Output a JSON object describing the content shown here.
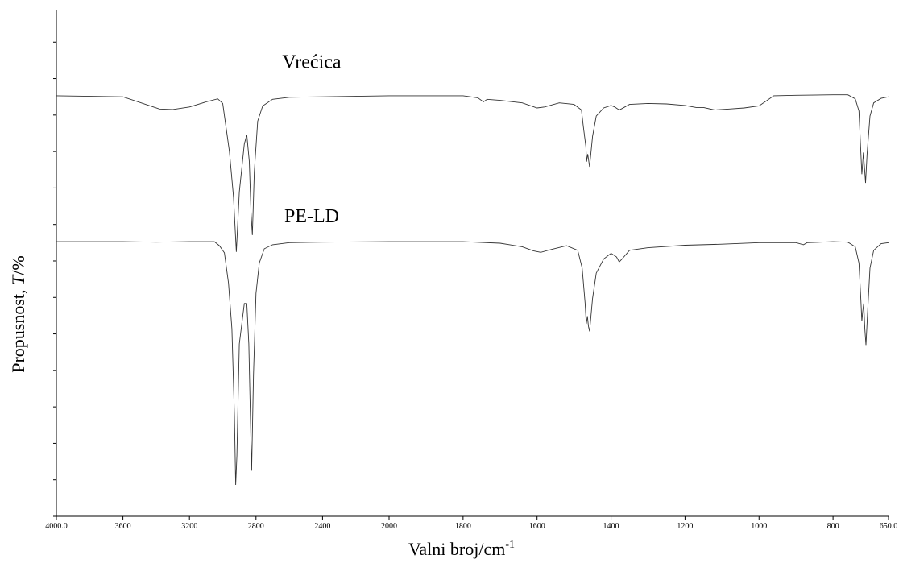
{
  "chart_data": {
    "type": "line",
    "xlabel": "Valni broj/cm",
    "xlabel_superscript": "-1",
    "ylabel_prefix": "Propusnost, ",
    "ylabel_italic": "T",
    "ylabel_suffix": "/%",
    "xlim": [
      4000,
      650
    ],
    "x_reversed": true,
    "x_ticks": [
      4000,
      3600,
      3200,
      2800,
      2400,
      2000,
      1800,
      1600,
      1400,
      1200,
      1000,
      800,
      650
    ],
    "x_tick_labels": [
      "4000.0",
      "3600",
      "3200",
      "2800",
      "2400",
      "2000",
      "1800",
      "1600",
      "1400",
      "1200",
      "1000",
      "800",
      "650.0"
    ],
    "ylim": [
      0,
      100
    ],
    "y_ticks": [
      0,
      7.2,
      14.4,
      21.6,
      28.8,
      36,
      43.2,
      50.4,
      57.6,
      64.8,
      72,
      79.2,
      86.4,
      93.6,
      100.8
    ],
    "y_tick_labels_visible": false,
    "grid": false,
    "legend": "none",
    "line_color": "#333333",
    "series": [
      {
        "name": "Vrećica",
        "label": "Vrećica",
        "points": [
          [
            4000,
            83
          ],
          [
            3800,
            82.9
          ],
          [
            3600,
            82.8
          ],
          [
            3480,
            81.5
          ],
          [
            3380,
            80.4
          ],
          [
            3300,
            80.3
          ],
          [
            3200,
            80.8
          ],
          [
            3100,
            81.8
          ],
          [
            3030,
            82.4
          ],
          [
            3000,
            81.5
          ],
          [
            2960,
            72
          ],
          [
            2935,
            63
          ],
          [
            2918,
            52.2
          ],
          [
            2900,
            64
          ],
          [
            2870,
            73.5
          ],
          [
            2855,
            75.3
          ],
          [
            2840,
            70
          ],
          [
            2830,
            60
          ],
          [
            2822,
            55.5
          ],
          [
            2810,
            68
          ],
          [
            2790,
            78
          ],
          [
            2760,
            81
          ],
          [
            2700,
            82.3
          ],
          [
            2600,
            82.7
          ],
          [
            2400,
            82.8
          ],
          [
            2200,
            82.9
          ],
          [
            2000,
            83
          ],
          [
            1800,
            83
          ],
          [
            1760,
            82.6
          ],
          [
            1745,
            81.8
          ],
          [
            1735,
            82.3
          ],
          [
            1700,
            82.1
          ],
          [
            1640,
            81.6
          ],
          [
            1600,
            80.6
          ],
          [
            1580,
            80.8
          ],
          [
            1540,
            81.6
          ],
          [
            1500,
            81.3
          ],
          [
            1480,
            80.2
          ],
          [
            1475,
            77
          ],
          [
            1468,
            73
          ],
          [
            1466,
            70
          ],
          [
            1463,
            71.5
          ],
          [
            1460,
            70
          ],
          [
            1458,
            69
          ],
          [
            1450,
            75
          ],
          [
            1440,
            79
          ],
          [
            1420,
            80.6
          ],
          [
            1400,
            81.1
          ],
          [
            1390,
            80.8
          ],
          [
            1378,
            80.2
          ],
          [
            1370,
            80.5
          ],
          [
            1350,
            81.3
          ],
          [
            1300,
            81.5
          ],
          [
            1250,
            81.4
          ],
          [
            1200,
            81.1
          ],
          [
            1170,
            80.7
          ],
          [
            1150,
            80.7
          ],
          [
            1120,
            80.2
          ],
          [
            1080,
            80.4
          ],
          [
            1040,
            80.6
          ],
          [
            1000,
            81
          ],
          [
            980,
            82
          ],
          [
            960,
            83
          ],
          [
            900,
            83.1
          ],
          [
            800,
            83.2
          ],
          [
            760,
            83.2
          ],
          [
            740,
            82.4
          ],
          [
            730,
            80
          ],
          [
            725,
            72
          ],
          [
            722,
            67.5
          ],
          [
            720,
            69.6
          ],
          [
            718,
            71.8
          ],
          [
            715,
            69
          ],
          [
            712,
            65.8
          ],
          [
            708,
            71.5
          ],
          [
            700,
            79
          ],
          [
            690,
            81.6
          ],
          [
            670,
            82.5
          ],
          [
            650,
            82.8
          ]
        ]
      },
      {
        "name": "PE-LD",
        "label": "PE-LD",
        "points": [
          [
            4000,
            54.2
          ],
          [
            3800,
            54.2
          ],
          [
            3600,
            54.2
          ],
          [
            3400,
            54.1
          ],
          [
            3200,
            54.2
          ],
          [
            3050,
            54.2
          ],
          [
            3020,
            53.4
          ],
          [
            2990,
            52
          ],
          [
            2965,
            46
          ],
          [
            2945,
            37
          ],
          [
            2930,
            20
          ],
          [
            2922,
            6.2
          ],
          [
            2915,
            12
          ],
          [
            2900,
            34
          ],
          [
            2870,
            42
          ],
          [
            2855,
            42
          ],
          [
            2843,
            34
          ],
          [
            2834,
            20
          ],
          [
            2826,
            9
          ],
          [
            2815,
            28
          ],
          [
            2800,
            44
          ],
          [
            2780,
            50
          ],
          [
            2750,
            52.8
          ],
          [
            2700,
            53.6
          ],
          [
            2600,
            54
          ],
          [
            2400,
            54.1
          ],
          [
            2000,
            54.2
          ],
          [
            1800,
            54.2
          ],
          [
            1700,
            53.9
          ],
          [
            1640,
            53.2
          ],
          [
            1610,
            52.4
          ],
          [
            1590,
            52.1
          ],
          [
            1560,
            52.7
          ],
          [
            1520,
            53.4
          ],
          [
            1490,
            52.5
          ],
          [
            1478,
            49
          ],
          [
            1470,
            42
          ],
          [
            1467,
            38
          ],
          [
            1464,
            39.5
          ],
          [
            1461,
            37.5
          ],
          [
            1458,
            36.5
          ],
          [
            1450,
            43
          ],
          [
            1440,
            48
          ],
          [
            1420,
            50.8
          ],
          [
            1400,
            51.9
          ],
          [
            1385,
            51.2
          ],
          [
            1378,
            50.2
          ],
          [
            1370,
            50.8
          ],
          [
            1350,
            52.5
          ],
          [
            1300,
            53
          ],
          [
            1200,
            53.5
          ],
          [
            1100,
            53.7
          ],
          [
            1000,
            54
          ],
          [
            900,
            54
          ],
          [
            880,
            53.6
          ],
          [
            870,
            54
          ],
          [
            800,
            54.2
          ],
          [
            760,
            54.1
          ],
          [
            740,
            53.2
          ],
          [
            730,
            50
          ],
          [
            725,
            43
          ],
          [
            722,
            38.5
          ],
          [
            720,
            40.3
          ],
          [
            717,
            42
          ],
          [
            714,
            37
          ],
          [
            711,
            33.8
          ],
          [
            706,
            41
          ],
          [
            700,
            49
          ],
          [
            690,
            52.5
          ],
          [
            670,
            53.8
          ],
          [
            650,
            54
          ]
        ]
      }
    ]
  }
}
